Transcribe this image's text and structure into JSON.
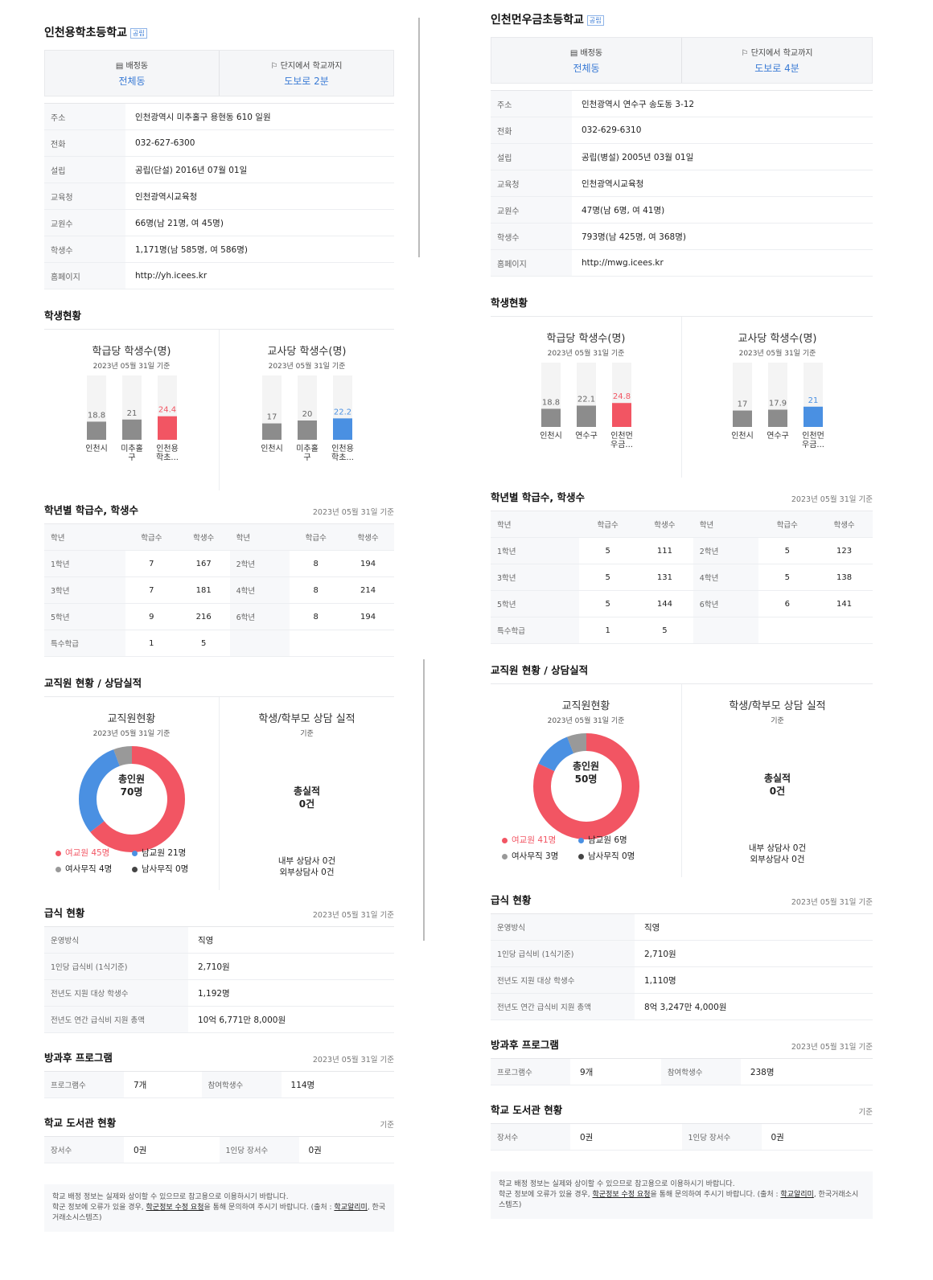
{
  "left": {
    "school": {
      "name": "인천용학초등학교",
      "badge": "공립"
    },
    "summary": {
      "assign_icon": "grid-icon",
      "assign_label": "배정동",
      "assign_value": "전체동",
      "walk_icon": "walk-icon",
      "walk_label": "단지에서 학교까지",
      "walk_value": "도보로 2분"
    },
    "info": [
      {
        "k": "주소",
        "v": "인천광역시 미추홀구 용현동 610 일원"
      },
      {
        "k": "전화",
        "v": "032-627-6300"
      },
      {
        "k": "설립",
        "v": "공립(단설) 2016년 07월 01일"
      },
      {
        "k": "교육청",
        "v": "인천광역시교육청"
      },
      {
        "k": "교원수",
        "v": "66명(남 21명, 여 45명)"
      },
      {
        "k": "학생수",
        "v": "1,171명(남 585명, 여 586명)"
      },
      {
        "k": "홈페이지",
        "v": "http://yh.icees.kr"
      }
    ],
    "students_title": "학생현황",
    "chart_data": [
      {
        "type": "bar",
        "title": "학급당 학생수(명)",
        "subtitle": "2023년 05월 31일 기준",
        "categories": [
          "인천시",
          "미추홀\n구",
          "인천용\n학초..."
        ],
        "values": [
          18.8,
          21,
          24.4
        ],
        "value_labels": [
          "18.8",
          "21",
          "24.4"
        ],
        "highlight": 2,
        "highlight_color": "#f25563",
        "ylim": [
          0,
          30
        ]
      },
      {
        "type": "bar",
        "title": "교사당 학생수(명)",
        "subtitle": "2023년 05월 31일 기준",
        "categories": [
          "인천시",
          "미추홀\n구",
          "인천용\n학초..."
        ],
        "values": [
          17,
          20,
          22.2
        ],
        "value_labels": [
          "17",
          "20",
          "22.2"
        ],
        "highlight": 2,
        "highlight_color": "#4a90e2",
        "ylim": [
          0,
          30
        ]
      }
    ],
    "grade": {
      "title": "학년별 학급수, 학생수",
      "date": "2023년 05월 31일 기준",
      "headers": [
        "학년",
        "학급수",
        "학생수",
        "학년",
        "학급수",
        "학생수"
      ],
      "rows": [
        [
          "1학년",
          "7",
          "167",
          "2학년",
          "8",
          "194"
        ],
        [
          "3학년",
          "7",
          "181",
          "4학년",
          "8",
          "214"
        ],
        [
          "5학년",
          "9",
          "216",
          "6학년",
          "8",
          "194"
        ],
        [
          "특수학급",
          "1",
          "5",
          "",
          "",
          ""
        ]
      ]
    },
    "staff": {
      "title": "교직원 현황 / 상담실적",
      "chart_title": "교직원현황",
      "chart_sub": "2023년 05월 31일 기준",
      "center_label": "총인원",
      "center_value": "70명",
      "counsel_title": "학생/학부모 상담 실적",
      "counsel_sub": "기준",
      "counsel_label": "총실적",
      "counsel_value": "0건",
      "counsel_inner": "내부 상담사 0건",
      "counsel_outer": "외부상담사 0건",
      "legend": [
        "여교원 45명",
        "남교원 21명",
        "여사무직 4명",
        "남사무직 0명"
      ],
      "chart_data": {
        "type": "pie",
        "labels": [
          "여교원",
          "남교원",
          "여사무직",
          "남사무직"
        ],
        "values": [
          45,
          21,
          4,
          0
        ],
        "colors": [
          "#f25563",
          "#4a90e2",
          "#999999",
          "#444444"
        ]
      }
    },
    "meal": {
      "title": "급식 현황",
      "date": "2023년 05월 31일 기준",
      "rows": [
        {
          "k": "운영방식",
          "v": "직영"
        },
        {
          "k": "1인당 급식비 (1식기준)",
          "v": "2,710원"
        },
        {
          "k": "전년도 지원 대상 학생수",
          "v": "1,192명"
        },
        {
          "k": "전년도 연간 급식비 지원 총액",
          "v": "10억 6,771만 8,000원"
        }
      ]
    },
    "after": {
      "title": "방과후 프로그램",
      "date": "2023년 05월 31일 기준",
      "k1": "프로그램수",
      "v1": "7개",
      "k2": "참여학생수",
      "v2": "114명"
    },
    "library": {
      "title": "학교 도서관 현황",
      "date": "기준",
      "k1": "장서수",
      "v1": "0권",
      "k2": "1인당 장서수",
      "v2": "0권"
    },
    "note": {
      "line1": "학교 배정 정보는 실제와 상이할 수 있으므로 참고용으로 이용하시기 바랍니다.",
      "line2a": "학군 정보에 오류가 있을 경우, ",
      "line2b": "학군정보 수정 요청",
      "line2c": "을 통해 문의하여 주시기 바랍니다. (출처 : ",
      "line2d": "학교알리미",
      "line2e": ", 한국거래소시스템즈)"
    }
  },
  "right": {
    "school": {
      "name": "인천먼우금초등학교",
      "badge": "공립"
    },
    "summary": {
      "assign_icon": "grid-icon",
      "assign_label": "배정동",
      "assign_value": "전체동",
      "walk_icon": "walk-icon",
      "walk_label": "단지에서 학교까지",
      "walk_value": "도보로 4분"
    },
    "info": [
      {
        "k": "주소",
        "v": "인천광역시 연수구 송도동 3-12"
      },
      {
        "k": "전화",
        "v": "032-629-6310"
      },
      {
        "k": "설립",
        "v": "공립(병설) 2005년 03월 01일"
      },
      {
        "k": "교육청",
        "v": "인천광역시교육청"
      },
      {
        "k": "교원수",
        "v": "47명(남 6명, 여 41명)"
      },
      {
        "k": "학생수",
        "v": "793명(남 425명, 여 368명)"
      },
      {
        "k": "홈페이지",
        "v": "http://mwg.icees.kr"
      }
    ],
    "students_title": "학생현황",
    "chart_data": [
      {
        "type": "bar",
        "title": "학급당 학생수(명)",
        "subtitle": "2023년 05월 31일 기준",
        "categories": [
          "인천시",
          "연수구",
          "인천먼\n우금..."
        ],
        "values": [
          18.8,
          22.1,
          24.8
        ],
        "value_labels": [
          "18.8",
          "22.1",
          "24.8"
        ],
        "highlight": 2,
        "highlight_color": "#f25563",
        "ylim": [
          0,
          30
        ]
      },
      {
        "type": "bar",
        "title": "교사당 학생수(명)",
        "subtitle": "2023년 05월 31일 기준",
        "categories": [
          "인천시",
          "연수구",
          "인천먼\n우금..."
        ],
        "values": [
          17,
          17.9,
          21
        ],
        "value_labels": [
          "17",
          "17.9",
          "21"
        ],
        "highlight": 2,
        "highlight_color": "#4a90e2",
        "ylim": [
          0,
          30
        ]
      }
    ],
    "grade": {
      "title": "학년별 학급수, 학생수",
      "date": "2023년 05월 31일 기준",
      "headers": [
        "학년",
        "학급수",
        "학생수",
        "학년",
        "학급수",
        "학생수"
      ],
      "rows": [
        [
          "1학년",
          "5",
          "111",
          "2학년",
          "5",
          "123"
        ],
        [
          "3학년",
          "5",
          "131",
          "4학년",
          "5",
          "138"
        ],
        [
          "5학년",
          "5",
          "144",
          "6학년",
          "6",
          "141"
        ],
        [
          "특수학급",
          "1",
          "5",
          "",
          "",
          ""
        ]
      ]
    },
    "staff": {
      "title": "교직원 현황 / 상담실적",
      "chart_title": "교직원현황",
      "chart_sub": "2023년 05월 31일 기준",
      "center_label": "총인원",
      "center_value": "50명",
      "counsel_title": "학생/학부모 상담 실적",
      "counsel_sub": "기준",
      "counsel_label": "총실적",
      "counsel_value": "0건",
      "counsel_inner": "내부 상담사 0건",
      "counsel_outer": "외부상담사 0건",
      "legend": [
        "여교원 41명",
        "남교원 6명",
        "여사무직 3명",
        "남사무직 0명"
      ],
      "chart_data": {
        "type": "pie",
        "labels": [
          "여교원",
          "남교원",
          "여사무직",
          "남사무직"
        ],
        "values": [
          41,
          6,
          3,
          0
        ],
        "colors": [
          "#f25563",
          "#4a90e2",
          "#999999",
          "#444444"
        ]
      }
    },
    "meal": {
      "title": "급식 현황",
      "date": "2023년 05월 31일 기준",
      "rows": [
        {
          "k": "운영방식",
          "v": "직영"
        },
        {
          "k": "1인당 급식비 (1식기준)",
          "v": "2,710원"
        },
        {
          "k": "전년도 지원 대상 학생수",
          "v": "1,110명"
        },
        {
          "k": "전년도 연간 급식비 지원 총액",
          "v": "8억 3,247만 4,000원"
        }
      ]
    },
    "after": {
      "title": "방과후 프로그램",
      "date": "2023년 05월 31일 기준",
      "k1": "프로그램수",
      "v1": "9개",
      "k2": "참여학생수",
      "v2": "238명"
    },
    "library": {
      "title": "학교 도서관 현황",
      "date": "기준",
      "k1": "장서수",
      "v1": "0권",
      "k2": "1인당 장서수",
      "v2": "0권"
    },
    "note": {
      "line1": "학교 배정 정보는 실제와 상이할 수 있으므로 참고용으로 이용하시기 바랍니다.",
      "line2a": "학군 정보에 오류가 있을 경우, ",
      "line2b": "학군정보 수정 요청",
      "line2c": "을 통해 문의하여 주시기 바랍니다. (출처 : ",
      "line2d": "학교알리미",
      "line2e": ", 한국거래소시스템즈)"
    }
  }
}
